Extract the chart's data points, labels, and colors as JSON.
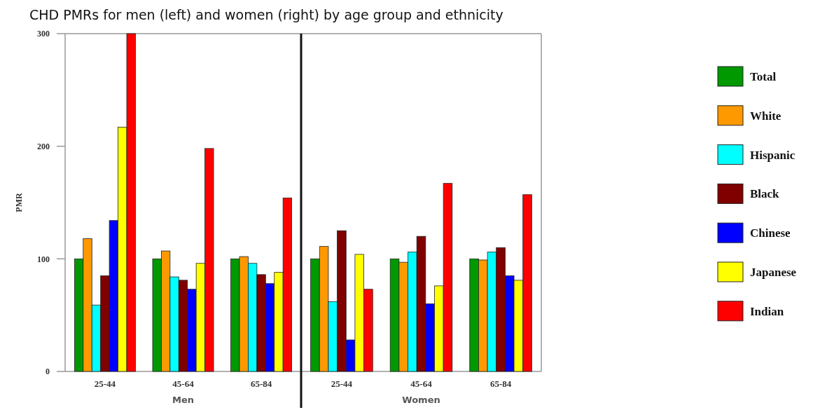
{
  "chart_data": [
    {
      "type": "bar",
      "title": "CHD PMRs for men (left) and women (right) by age group and ethnicity",
      "xlabel": "Men",
      "ylabel": "PMR",
      "categories": [
        "25-44",
        "45-64",
        "65-84"
      ],
      "ylim": [
        0,
        300
      ],
      "yticks": [
        0,
        100,
        200,
        300
      ],
      "series": [
        {
          "color": "#009900",
          "values": [
            100,
            100,
            100
          ]
        },
        {
          "color": "#ff9900",
          "values": [
            118,
            107,
            102
          ]
        },
        {
          "color": "#00ffff",
          "values": [
            59,
            84,
            96
          ]
        },
        {
          "color": "#800000",
          "values": [
            85,
            81,
            86
          ]
        },
        {
          "color": "#0000ff",
          "values": [
            134,
            73,
            78
          ]
        },
        {
          "color": "#ffff00",
          "values": [
            217,
            96,
            88
          ]
        },
        {
          "color": "#ff0000",
          "values": [
            300,
            198,
            154
          ]
        }
      ]
    },
    {
      "type": "bar",
      "xlabel": "Women",
      "categories": [
        "25-44",
        "45-64",
        "65-84"
      ],
      "ylim": [
        0,
        300
      ],
      "tick_labels": "x",
      "legend": "right",
      "series": [
        {
          "name": "Total",
          "color": "#009900",
          "values": [
            100,
            100,
            100
          ]
        },
        {
          "name": "White",
          "color": "#ff9900",
          "values": [
            111,
            97,
            99
          ]
        },
        {
          "name": "Hispanic",
          "color": "#00ffff",
          "values": [
            62,
            106,
            106
          ]
        },
        {
          "name": "Black",
          "color": "#800000",
          "values": [
            125,
            120,
            110
          ]
        },
        {
          "name": "Chinese",
          "color": "#0000ff",
          "values": [
            28,
            60,
            85
          ]
        },
        {
          "name": "Japanese",
          "color": "#ffff00",
          "values": [
            104,
            76,
            81
          ]
        },
        {
          "name": "Indian",
          "color": "#ff0000",
          "values": [
            73,
            167,
            157
          ]
        }
      ]
    }
  ]
}
